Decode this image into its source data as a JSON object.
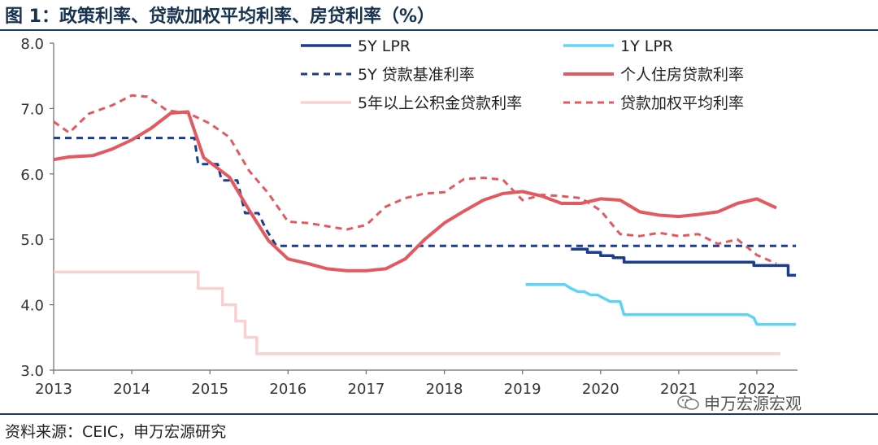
{
  "title": "图 1：政策利率、贷款加权平均利率、房贷利率（%）",
  "source": "资料来源：CEIC，申万宏源研究",
  "watermark": "申万宏源宏观",
  "chart_data": {
    "type": "line",
    "xlabel": "",
    "ylabel": "",
    "ylim": [
      3.0,
      8.0
    ],
    "y_ticks": [
      "3.0",
      "4.0",
      "5.0",
      "6.0",
      "7.0",
      "8.0"
    ],
    "xlim": [
      2013,
      2022.52
    ],
    "x_ticks": [
      "2013",
      "2014",
      "2015",
      "2016",
      "2017",
      "2018",
      "2019",
      "2020",
      "2021",
      "2022"
    ],
    "grid": false,
    "legend_position": "top",
    "series": [
      {
        "name": "5Y LPR",
        "color": "#1a3d8f",
        "style": "solid",
        "width": 3.5,
        "x": [
          2019.62,
          2019.83,
          2019.83,
          2020.0,
          2020.0,
          2020.16,
          2020.16,
          2020.3,
          2020.3,
          2021.96,
          2021.96,
          2022.25,
          2022.25,
          2022.4,
          2022.4,
          2022.5
        ],
        "y": [
          4.85,
          4.85,
          4.8,
          4.8,
          4.75,
          4.75,
          4.72,
          4.72,
          4.65,
          4.65,
          4.6,
          4.6,
          4.6,
          4.6,
          4.45,
          4.45
        ]
      },
      {
        "name": "1Y LPR",
        "color": "#5fd3f5",
        "style": "solid",
        "width": 3.5,
        "x": [
          2019.04,
          2019.54,
          2019.62,
          2019.71,
          2019.79,
          2019.87,
          2019.96,
          2020.12,
          2020.25,
          2020.3,
          2021.88,
          2021.96,
          2022.0,
          2022.5
        ],
        "y": [
          4.31,
          4.31,
          4.25,
          4.2,
          4.2,
          4.15,
          4.15,
          4.05,
          4.05,
          3.85,
          3.85,
          3.8,
          3.7,
          3.7
        ]
      },
      {
        "name": "5Y 贷款基准利率",
        "color": "#1a3d8f",
        "style": "dashed",
        "width": 3,
        "x": [
          2013.0,
          2014.8,
          2014.85,
          2015.1,
          2015.15,
          2015.35,
          2015.45,
          2015.62,
          2015.72,
          2015.85,
          2022.5
        ],
        "y": [
          6.55,
          6.55,
          6.15,
          6.15,
          5.9,
          5.9,
          5.4,
          5.4,
          5.15,
          4.9,
          4.9
        ]
      },
      {
        "name": "个人住房贷款利率",
        "color": "#e25a5f",
        "style": "solid",
        "width": 4,
        "x": [
          2013.0,
          2013.2,
          2013.5,
          2013.75,
          2014.0,
          2014.25,
          2014.5,
          2014.72,
          2014.92,
          2015.25,
          2015.5,
          2015.75,
          2016.0,
          2016.25,
          2016.5,
          2016.75,
          2017.0,
          2017.25,
          2017.5,
          2017.75,
          2018.0,
          2018.25,
          2018.5,
          2018.75,
          2019.0,
          2019.25,
          2019.5,
          2019.75,
          2020.0,
          2020.25,
          2020.5,
          2020.75,
          2021.0,
          2021.25,
          2021.5,
          2021.75,
          2022.0,
          2022.25
        ],
        "y": [
          6.22,
          6.26,
          6.28,
          6.38,
          6.52,
          6.7,
          6.93,
          6.95,
          6.25,
          5.95,
          5.45,
          4.98,
          4.7,
          4.63,
          4.55,
          4.52,
          4.52,
          4.55,
          4.7,
          5.0,
          5.25,
          5.43,
          5.6,
          5.7,
          5.73,
          5.66,
          5.55,
          5.55,
          5.62,
          5.6,
          5.42,
          5.37,
          5.35,
          5.38,
          5.42,
          5.55,
          5.62,
          5.48
        ]
      },
      {
        "name": "5年以上公积金贷款利率",
        "color": "#f8d0d0",
        "style": "solid",
        "width": 3.5,
        "x": [
          2013.0,
          2014.85,
          2014.85,
          2015.16,
          2015.16,
          2015.33,
          2015.33,
          2015.45,
          2015.45,
          2015.6,
          2015.6,
          2022.3
        ],
        "y": [
          4.5,
          4.5,
          4.25,
          4.25,
          4.0,
          4.0,
          3.75,
          3.75,
          3.5,
          3.5,
          3.25,
          3.25
        ]
      },
      {
        "name": "贷款加权平均利率",
        "color": "#e25a5f",
        "style": "dashed",
        "width": 3,
        "x": [
          2013.0,
          2013.2,
          2013.45,
          2013.75,
          2014.0,
          2014.2,
          2014.45,
          2014.72,
          2015.0,
          2015.25,
          2015.5,
          2015.75,
          2016.0,
          2016.25,
          2016.5,
          2016.75,
          2017.0,
          2017.25,
          2017.5,
          2017.75,
          2018.0,
          2018.25,
          2018.5,
          2018.75,
          2019.0,
          2019.25,
          2019.5,
          2019.75,
          2020.0,
          2020.25,
          2020.5,
          2020.75,
          2021.0,
          2021.25,
          2021.5,
          2021.75,
          2022.0,
          2022.25
        ],
        "y": [
          6.8,
          6.63,
          6.92,
          7.05,
          7.2,
          7.18,
          6.97,
          6.93,
          6.77,
          6.56,
          6.05,
          5.7,
          5.27,
          5.25,
          5.2,
          5.15,
          5.22,
          5.5,
          5.63,
          5.7,
          5.72,
          5.92,
          5.94,
          5.91,
          5.6,
          5.68,
          5.66,
          5.63,
          5.44,
          5.08,
          5.05,
          5.1,
          5.05,
          5.08,
          4.93,
          5.0,
          4.76,
          4.63
        ]
      }
    ]
  }
}
